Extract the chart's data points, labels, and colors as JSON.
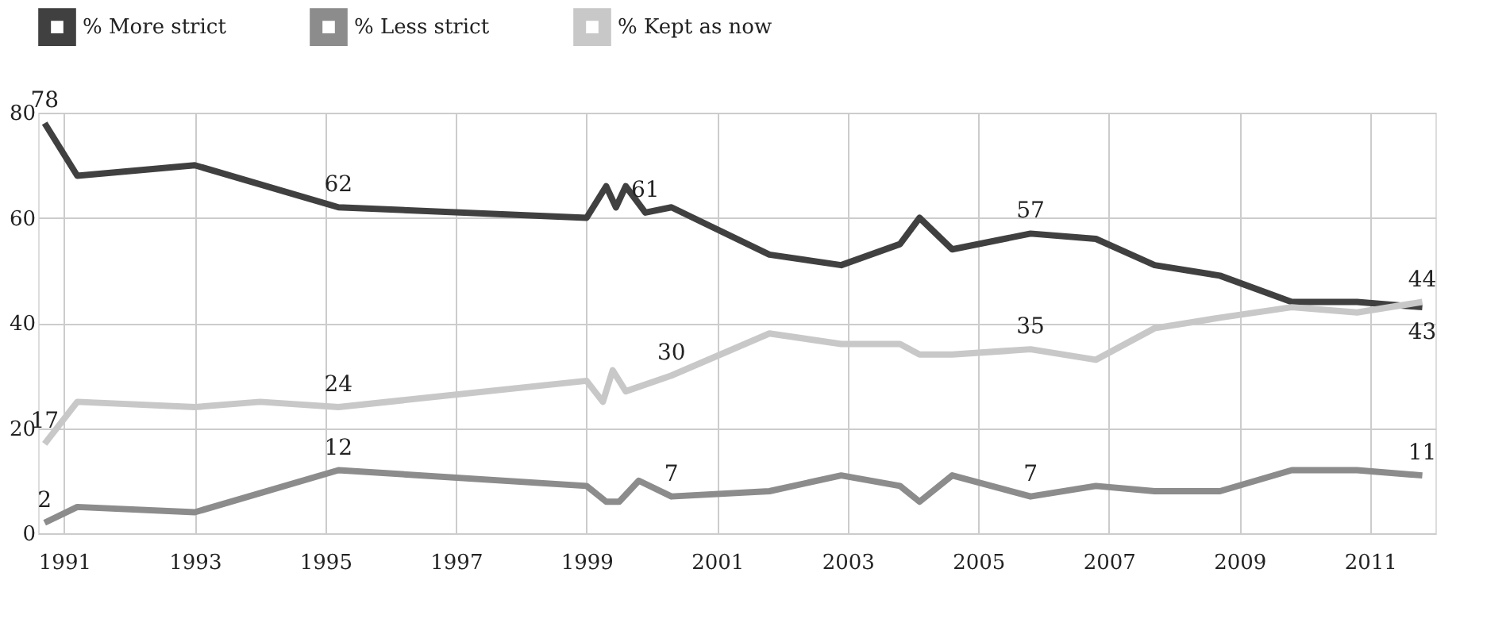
{
  "chart_data": {
    "type": "line",
    "xlim": [
      1990.6,
      2012.0
    ],
    "xticks": [
      1991,
      1993,
      1995,
      1997,
      1999,
      2001,
      2003,
      2005,
      2007,
      2009,
      2011
    ],
    "ylim": [
      0,
      80
    ],
    "yticks": [
      0,
      20,
      40,
      60,
      80
    ],
    "grid": true,
    "legend": "top left",
    "marker": "none",
    "line_style": "solid",
    "series": [
      {
        "name": "% More strict",
        "color": "#404040",
        "x": [
          1990.7,
          1991.2,
          1993.0,
          1995.2,
          1999.0,
          1999.3,
          1999.45,
          1999.6,
          1999.9,
          2000.3,
          2001.8,
          2002.9,
          2003.8,
          2004.1,
          2004.6,
          2005.8,
          2006.8,
          2007.7,
          2008.7,
          2009.8,
          2010.8,
          2011.8
        ],
        "values": [
          78,
          68,
          70,
          62,
          60,
          66,
          62,
          66,
          61,
          62,
          53,
          51,
          55,
          60,
          54,
          57,
          56,
          51,
          49,
          44,
          44,
          43
        ],
        "value_labels": [
          "78",
          null,
          null,
          "62",
          null,
          null,
          null,
          null,
          "61",
          null,
          null,
          null,
          null,
          null,
          null,
          "57",
          null,
          null,
          null,
          null,
          null,
          "43"
        ]
      },
      {
        "name": "% Less strict",
        "color": "#8c8c8c",
        "x": [
          1990.7,
          1991.2,
          1993.0,
          1995.2,
          1999.0,
          1999.3,
          1999.5,
          1999.8,
          2000.3,
          2001.8,
          2002.9,
          2003.8,
          2004.1,
          2004.6,
          2005.8,
          2006.8,
          2007.7,
          2008.7,
          2009.8,
          2010.8,
          2011.8
        ],
        "values": [
          2,
          5,
          4,
          12,
          9,
          6,
          6,
          10,
          7,
          8,
          11,
          9,
          6,
          11,
          7,
          9,
          8,
          8,
          12,
          12,
          11
        ],
        "value_labels": [
          "2",
          null,
          null,
          "12",
          null,
          null,
          null,
          null,
          "7",
          null,
          null,
          null,
          null,
          null,
          "7",
          null,
          null,
          null,
          null,
          null,
          "11"
        ]
      },
      {
        "name": "% Kept as now",
        "color": "#c8c8c8",
        "x": [
          1990.7,
          1991.2,
          1993.0,
          1994.0,
          1995.2,
          1999.0,
          1999.25,
          1999.4,
          1999.6,
          2000.3,
          2001.8,
          2002.9,
          2003.8,
          2004.1,
          2004.6,
          2005.8,
          2006.8,
          2007.7,
          2008.7,
          2009.8,
          2010.8,
          2011.8
        ],
        "values": [
          17,
          25,
          24,
          25,
          24,
          29,
          25,
          31,
          27,
          30,
          38,
          36,
          36,
          34,
          34,
          35,
          33,
          39,
          41,
          43,
          42,
          44
        ],
        "value_labels": [
          "17",
          null,
          null,
          null,
          "24",
          null,
          null,
          null,
          null,
          "30",
          null,
          null,
          null,
          null,
          null,
          "35",
          null,
          null,
          null,
          null,
          null,
          "44"
        ]
      }
    ]
  }
}
